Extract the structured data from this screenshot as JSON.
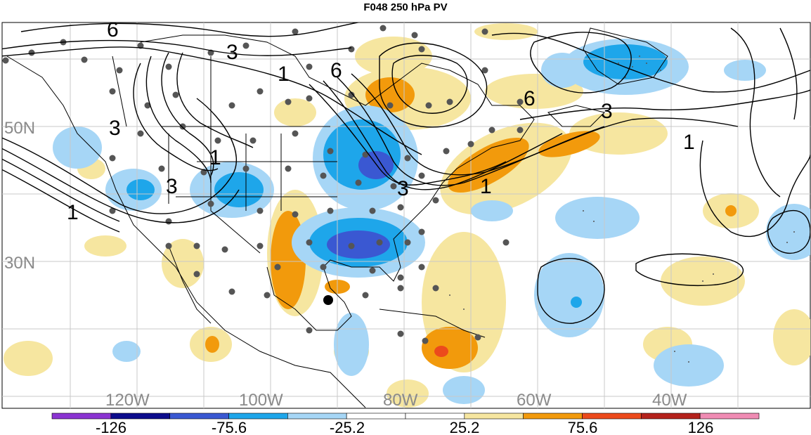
{
  "title": "F048 250 hPa PV",
  "map": {
    "lat_labels": [
      "50N",
      "30N"
    ],
    "lon_labels": [
      "120W",
      "100W",
      "80W",
      "60W",
      "40W"
    ],
    "contour_labels": [
      "6",
      "3",
      "1",
      "6",
      "3",
      "1",
      "6",
      "3",
      "1",
      "1",
      "3",
      "3",
      "1"
    ]
  },
  "colorbar": {
    "tick_labels": [
      "-126",
      "-75.6",
      "-25.2",
      "25.2",
      "75.6",
      "126"
    ],
    "colors": [
      "#8b34d2",
      "#0c0c8c",
      "#3a58d2",
      "#1ea6ea",
      "#a6d6f6",
      "#ffffff",
      "#ffffff",
      "#f6e6a0",
      "#f29a0c",
      "#ec4a1c",
      "#b4221c",
      "#f08cb4"
    ]
  }
}
